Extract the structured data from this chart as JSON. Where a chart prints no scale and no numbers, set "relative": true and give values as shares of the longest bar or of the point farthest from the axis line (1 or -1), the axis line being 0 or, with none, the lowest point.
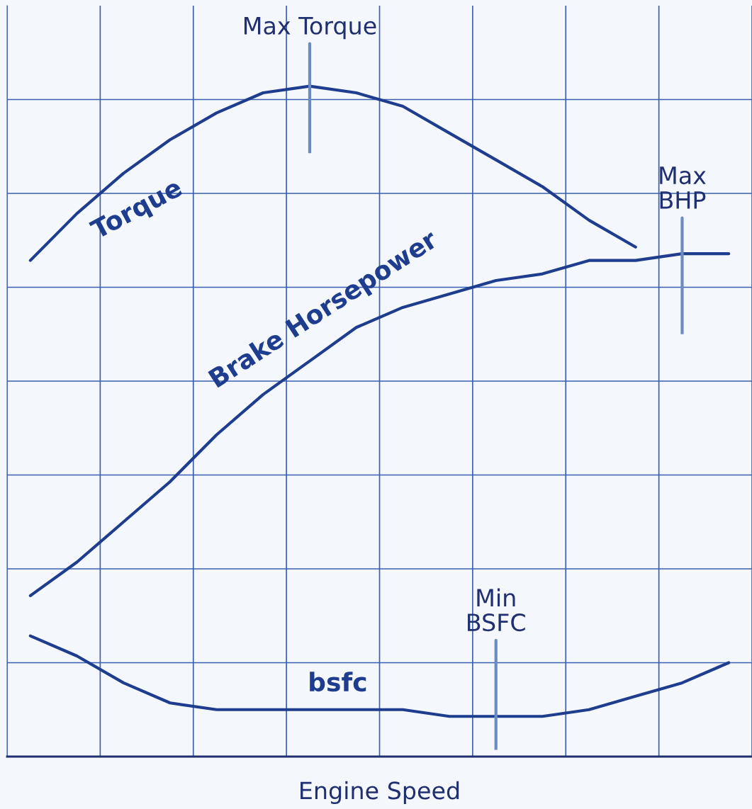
{
  "chart_data": {
    "type": "line",
    "relative": true,
    "xlabel": "Engine Speed",
    "grid": true,
    "legend": false,
    "marker": "none",
    "line_style": "solid",
    "categories": [
      null,
      null,
      null,
      null,
      null,
      null,
      null,
      null,
      null,
      null,
      null,
      null,
      null,
      null,
      null,
      null
    ],
    "series": [
      {
        "name": "Torque",
        "color": "#1f3d8f",
        "values": [
          0.74,
          0.81,
          0.87,
          0.92,
          0.96,
          0.99,
          1.0,
          0.99,
          0.97,
          0.93,
          0.89,
          0.85,
          0.8,
          0.76,
          null,
          null
        ]
      },
      {
        "name": "Brake Horsepower",
        "color": "#1f3d8f",
        "values": [
          0.24,
          0.29,
          0.35,
          0.41,
          0.48,
          0.54,
          0.59,
          0.64,
          0.67,
          0.69,
          0.71,
          0.72,
          0.74,
          0.74,
          0.75,
          0.75
        ]
      },
      {
        "name": "bsfc",
        "color": "#1f3d8f",
        "values": [
          0.18,
          0.15,
          0.11,
          0.08,
          0.07,
          0.07,
          0.07,
          0.07,
          0.07,
          0.06,
          0.06,
          0.06,
          0.07,
          0.09,
          0.11,
          0.14
        ]
      }
    ],
    "annotations": [
      {
        "text": "Max Torque",
        "y": 1.0
      },
      {
        "text": "Max\nBHP",
        "y": 0.75
      },
      {
        "text": "Min\nBSFC",
        "y": 0.06
      }
    ]
  }
}
